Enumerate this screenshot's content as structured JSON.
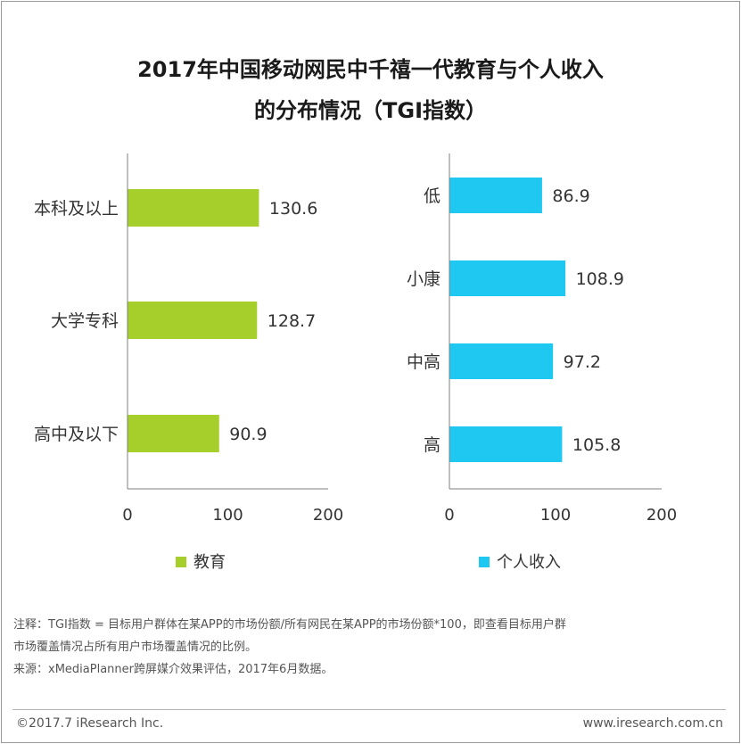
{
  "title": {
    "line1": "2017年中国移动网民中千禧一代教育与个人收入",
    "line2": "的分布情况（TGI指数）"
  },
  "colors": {
    "education": "#a6cf2c",
    "income": "#1ec8f0",
    "axis": "#7f7f7f",
    "text": "#333333"
  },
  "chart_data": [
    {
      "type": "bar",
      "orientation": "horizontal",
      "series_name": "教育",
      "categories": [
        "本科及以上",
        "大学专科",
        "高中及以下"
      ],
      "values": [
        130.6,
        128.7,
        90.9
      ],
      "value_labels": [
        "130.6",
        "128.7",
        "90.9"
      ],
      "xlim": [
        0,
        200
      ],
      "xticks": [
        "0",
        "100",
        "200"
      ],
      "legend": "教育",
      "color": "#a6cf2c"
    },
    {
      "type": "bar",
      "orientation": "horizontal",
      "series_name": "个人收入",
      "categories": [
        "低",
        "小康",
        "中高",
        "高"
      ],
      "values": [
        86.9,
        108.9,
        97.2,
        105.8
      ],
      "value_labels": [
        "86.9",
        "108.9",
        "97.2",
        "105.8"
      ],
      "xlim": [
        0,
        200
      ],
      "xticks": [
        "0",
        "100",
        "200"
      ],
      "legend": "个人收入",
      "color": "#1ec8f0"
    }
  ],
  "notes": {
    "line1": "注释：TGI指数 = 目标用户群体在某APP的市场份额/所有网民在某APP的市场份额*100，即查看目标用户群",
    "line2": "市场覆盖情况占所有用户市场覆盖情况的比例。",
    "line3": "来源：xMediaPlanner跨屏媒介效果评估，2017年6月数据。"
  },
  "footer": {
    "copyright": "©2017.7 iResearch Inc.",
    "site": "www.iresearch.com.cn"
  }
}
